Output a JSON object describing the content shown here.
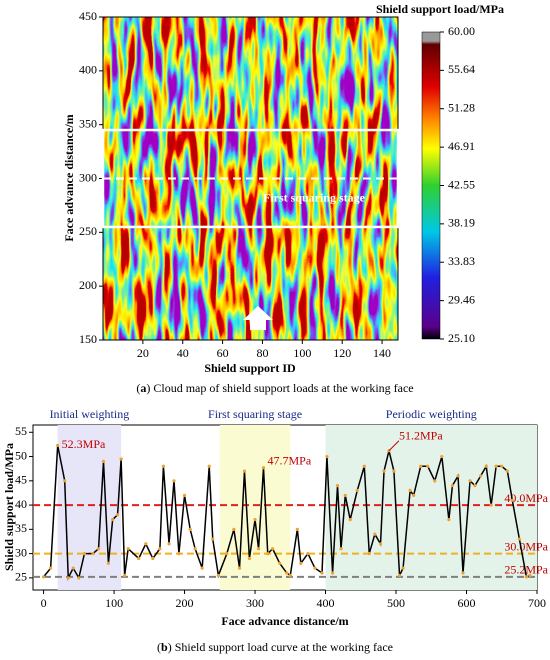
{
  "chart_data": [
    {
      "type": "heatmap",
      "colorbar_title": "Shield support load/MPa",
      "xlabel": "Shield support ID",
      "ylabel": "Face advance distance/m",
      "xlim": [
        0,
        148
      ],
      "xticks": [
        20,
        40,
        60,
        80,
        100,
        120,
        140
      ],
      "ylim": [
        150,
        450
      ],
      "yticks": [
        150,
        200,
        250,
        300,
        350,
        400,
        450
      ],
      "clim": [
        25.1,
        60
      ],
      "cticks": [
        {
          "value": 60,
          "label": "60.00"
        },
        55.64,
        51.28,
        46.91,
        42.55,
        38.19,
        33.83,
        29.46,
        {
          "value": 25.1,
          "label": "25.10"
        }
      ],
      "squaring_band": [
        255,
        345
      ],
      "squaring_midline": 300,
      "annotation": "First squaring stage",
      "caption_parts": [
        "(",
        "a",
        ") Cloud map of shield support loads at the working face"
      ]
    },
    {
      "type": "line",
      "xlabel": "Face advance distance/m",
      "ylabel": "Shield support load/MPa",
      "xlim": [
        -15,
        700
      ],
      "xticks": [
        0,
        100,
        200,
        300,
        400,
        500,
        600,
        700
      ],
      "ylim": [
        22.5,
        56.5
      ],
      "yticks": [
        25,
        30,
        35,
        40,
        45,
        50,
        55
      ],
      "series": [
        {
          "color": "#000000",
          "marker_color": "#f0a030",
          "x": [
            0,
            10,
            20,
            30,
            35,
            42,
            50,
            58,
            70,
            78,
            85,
            92,
            98,
            105,
            110,
            115,
            120,
            135,
            145,
            155,
            165,
            170,
            178,
            185,
            192,
            200,
            208,
            215,
            225,
            235,
            240,
            248,
            260,
            270,
            278,
            285,
            292,
            300,
            305,
            312,
            318,
            325,
            335,
            345,
            350,
            360,
            365,
            375,
            385,
            395,
            402,
            410,
            417,
            422,
            428,
            435,
            445,
            455,
            462,
            470,
            478,
            483,
            490,
            497,
            505,
            510,
            520,
            525,
            535,
            545,
            555,
            565,
            575,
            580,
            588,
            595,
            605,
            612,
            620,
            628,
            635,
            642,
            650,
            658,
            665,
            675,
            685,
            690
          ],
          "values": [
            25.2,
            27,
            52.3,
            45,
            25,
            27,
            25,
            30,
            30,
            31,
            49,
            28,
            37,
            38,
            49.5,
            25.5,
            31,
            29,
            32,
            29,
            31,
            48,
            32,
            45,
            30,
            42,
            35,
            31,
            27,
            48,
            33,
            25.5,
            30,
            35,
            27,
            47,
            29,
            37,
            31,
            47.7,
            30,
            31,
            28,
            26,
            25.5,
            35,
            28,
            30,
            27,
            26,
            50,
            26,
            44,
            31,
            42,
            37,
            43,
            48,
            30,
            34,
            32,
            47,
            51.2,
            47,
            25.5,
            27,
            43,
            42,
            48,
            48,
            45,
            50,
            37,
            44,
            46,
            26,
            45,
            44,
            46,
            48,
            40,
            48,
            48,
            47,
            41,
            33,
            25.2,
            25.5
          ]
        }
      ],
      "reference_lines": [
        {
          "value": 40,
          "label": "40.0MPa",
          "color": "#e02020"
        },
        {
          "value": 30,
          "label": "30.0MPa",
          "color": "#f0b020"
        },
        {
          "value": 25.2,
          "label": "25.2MPa",
          "color": "#808080"
        }
      ],
      "regions": [
        {
          "name": "Initial weighting",
          "range": [
            20,
            110
          ],
          "color": "#e6e6f8"
        },
        {
          "name": "First squaring stage",
          "range": [
            250,
            350
          ],
          "color": "#fbfbd2"
        },
        {
          "name": "Periodic weighting",
          "range": [
            400,
            700
          ],
          "color": "#e4f3ea"
        }
      ],
      "annotations": [
        {
          "label": "52.3MPa",
          "x": 20,
          "y": 52.3
        },
        {
          "label": "47.7MPa",
          "x": 312,
          "y": 47.7
        },
        {
          "label": "51.2MPa",
          "x": 490,
          "y": 51.2
        }
      ],
      "caption_parts": [
        "(",
        "b",
        ") Shield support load curve at the working face"
      ]
    }
  ]
}
